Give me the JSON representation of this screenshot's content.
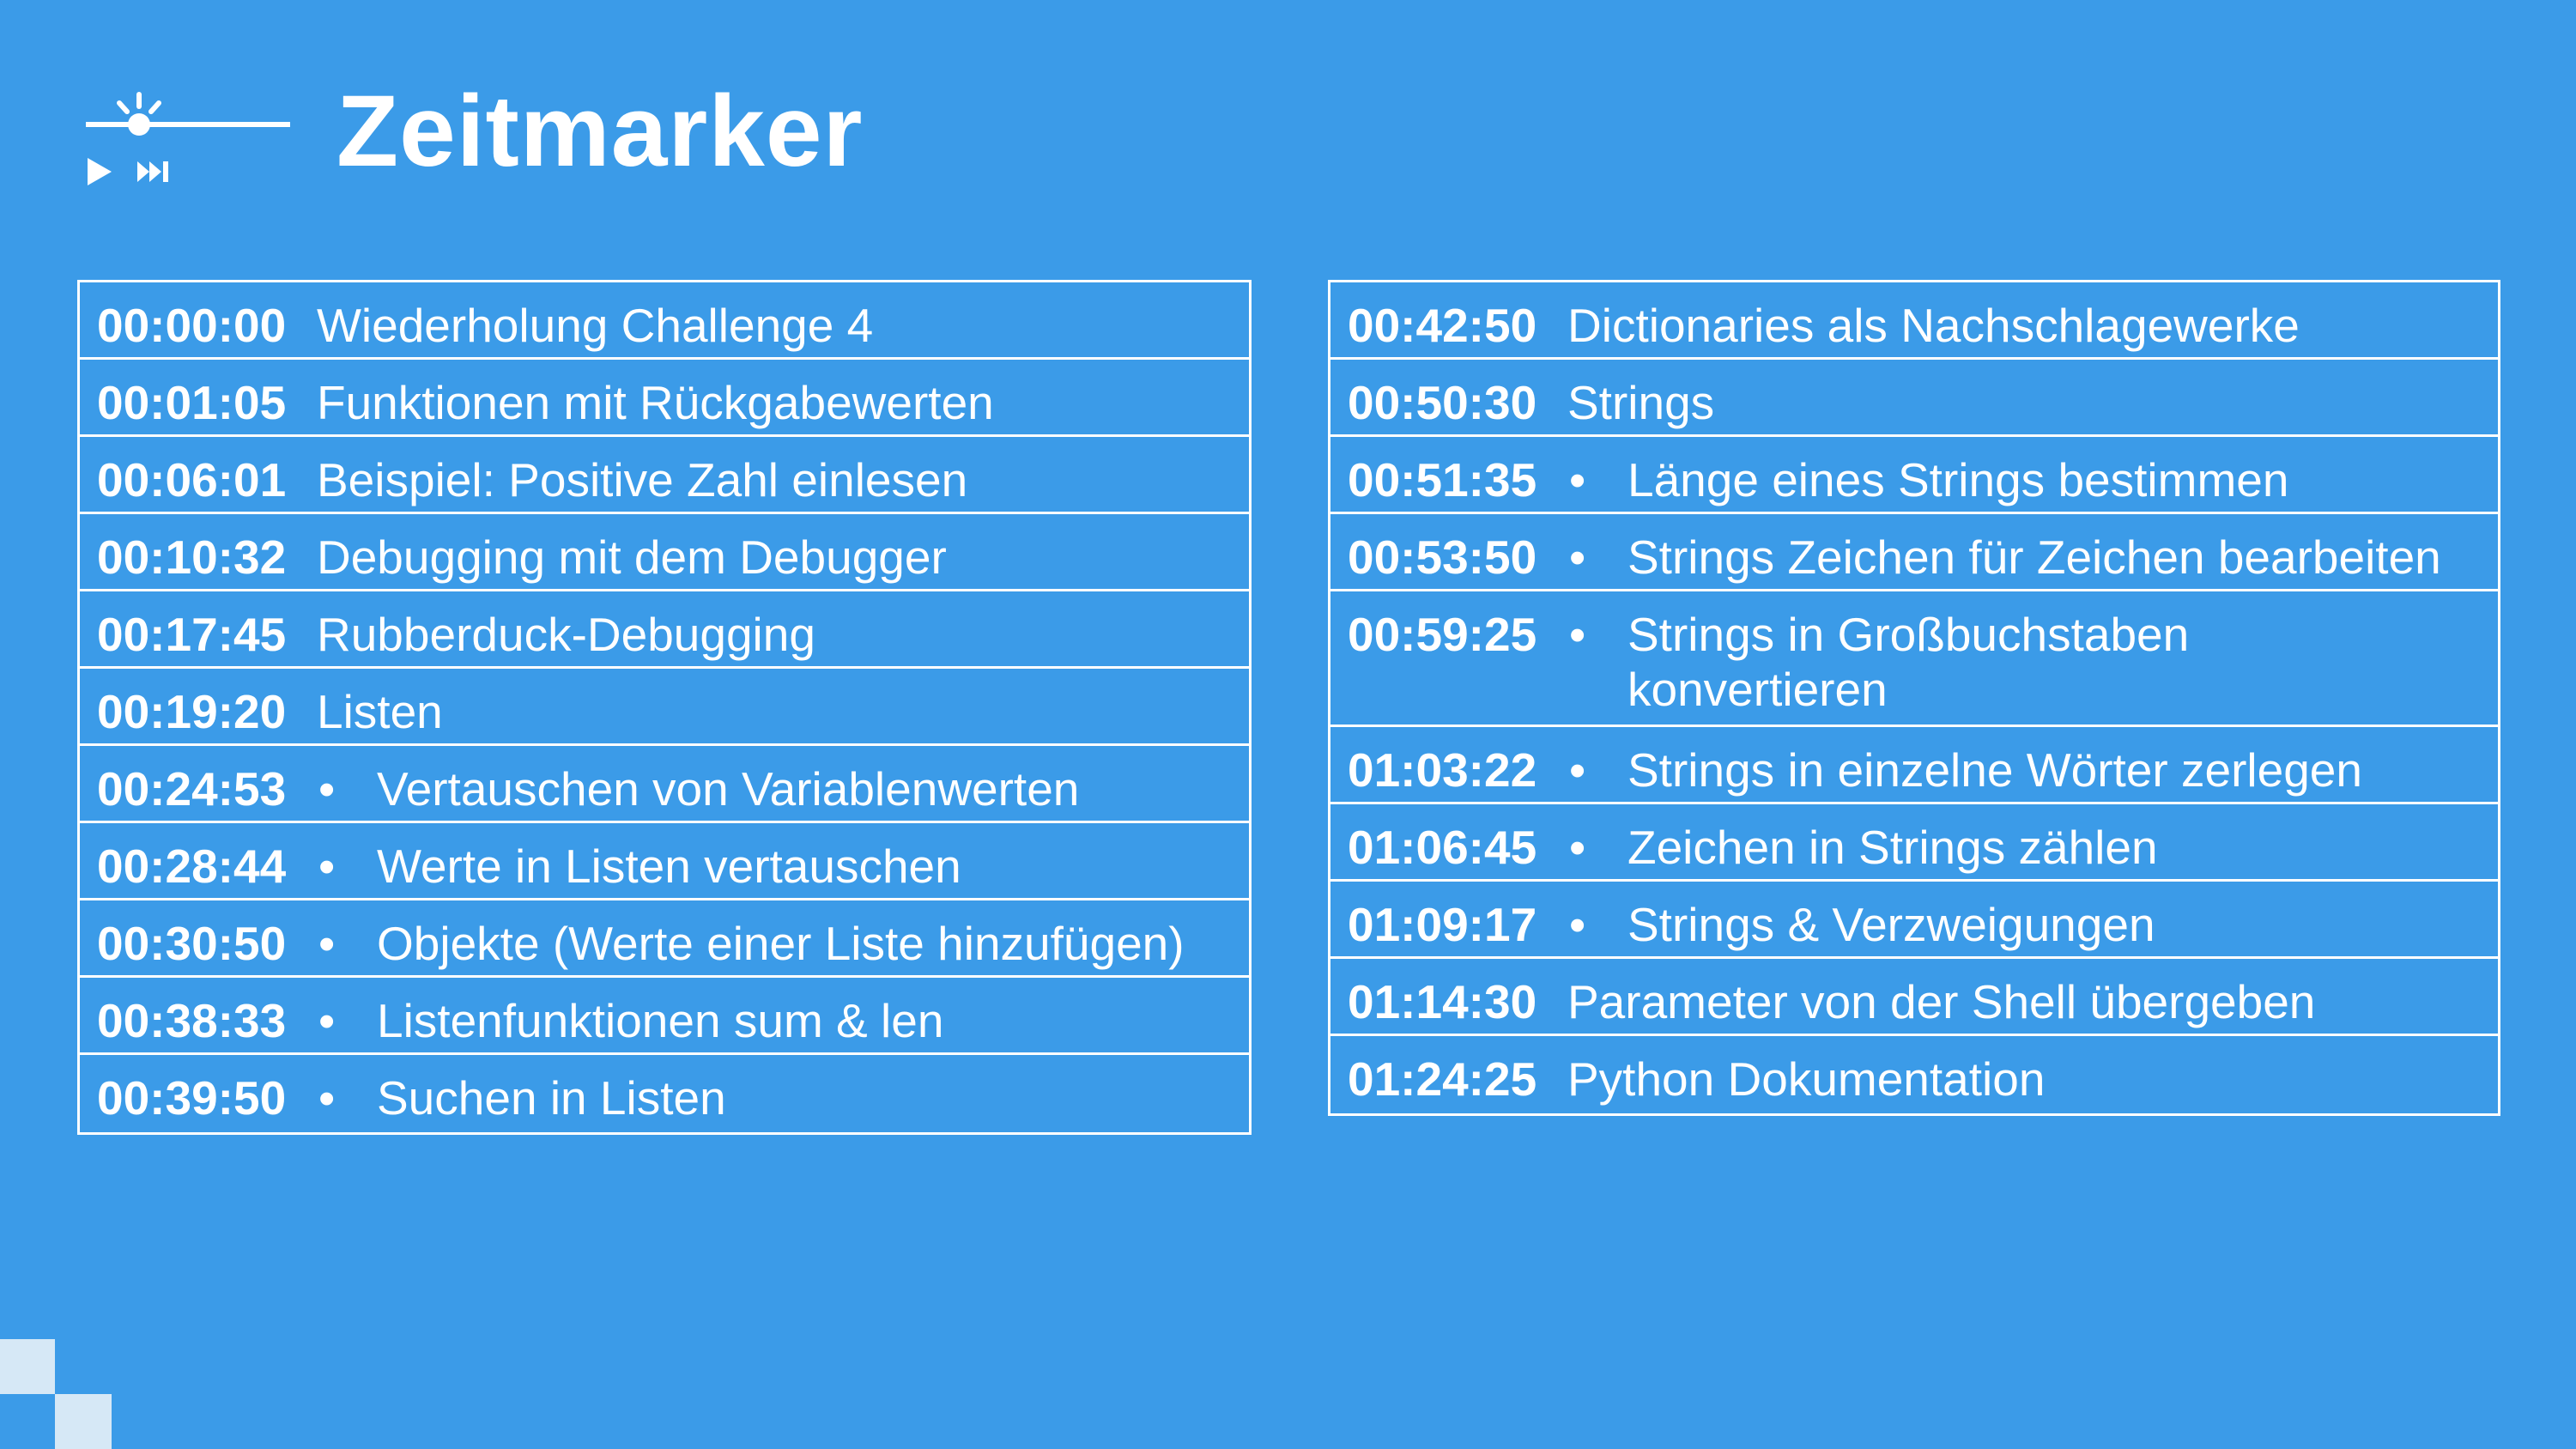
{
  "header": {
    "title": "Zeitmarker",
    "logo_icon": "timeline-player-icon"
  },
  "colors": {
    "background": "#3b9be8",
    "text": "#ffffff",
    "decoration": "#d6e8f6"
  },
  "left_table": {
    "rows": [
      {
        "time": "00:00:00",
        "label": "Wiederholung Challenge 4",
        "bullet": ""
      },
      {
        "time": "00:01:05",
        "label": "Funktionen mit Rückgabewerten",
        "bullet": ""
      },
      {
        "time": "00:06:01",
        "label": "Beispiel: Positive Zahl einlesen",
        "bullet": ""
      },
      {
        "time": "00:10:32",
        "label": "Debugging mit dem Debugger",
        "bullet": ""
      },
      {
        "time": "00:17:45",
        "label": "Rubberduck-Debugging",
        "bullet": ""
      },
      {
        "time": "00:19:20",
        "label": "Listen",
        "bullet": ""
      },
      {
        "time": "00:24:53",
        "label": "Vertauschen von Variablenwerten",
        "bullet": "•"
      },
      {
        "time": "00:28:44",
        "label": "Werte in Listen vertauschen",
        "bullet": "•"
      },
      {
        "time": "00:30:50",
        "label": "Objekte (Werte einer Liste hinzufügen)",
        "bullet": "•"
      },
      {
        "time": "00:38:33",
        "label": "Listenfunktionen sum & len",
        "bullet": "•"
      },
      {
        "time": "00:39:50",
        "label": "Suchen in Listen",
        "bullet": "•"
      }
    ]
  },
  "right_table": {
    "rows": [
      {
        "time": "00:42:50",
        "label": "Dictionaries als Nachschlagewerke",
        "bullet": ""
      },
      {
        "time": "00:50:30",
        "label": "Strings",
        "bullet": ""
      },
      {
        "time": "00:51:35",
        "label": "Länge eines Strings bestimmen",
        "bullet": "•"
      },
      {
        "time": "00:53:50",
        "label": "Strings Zeichen für Zeichen bearbeiten",
        "bullet": "•"
      },
      {
        "time": "00:59:25",
        "label": "Strings in Großbuchstaben\nkonvertieren",
        "bullet": "•"
      },
      {
        "time": "01:03:22",
        "label": "Strings in einzelne Wörter zerlegen",
        "bullet": "•"
      },
      {
        "time": "01:06:45",
        "label": "Zeichen in Strings zählen",
        "bullet": "•"
      },
      {
        "time": "01:09:17",
        "label": "Strings & Verzweigungen",
        "bullet": "•"
      },
      {
        "time": "01:14:30",
        "label": "Parameter von der Shell übergeben",
        "bullet": ""
      },
      {
        "time": "01:24:25",
        "label": "Python Dokumentation",
        "bullet": ""
      }
    ]
  }
}
